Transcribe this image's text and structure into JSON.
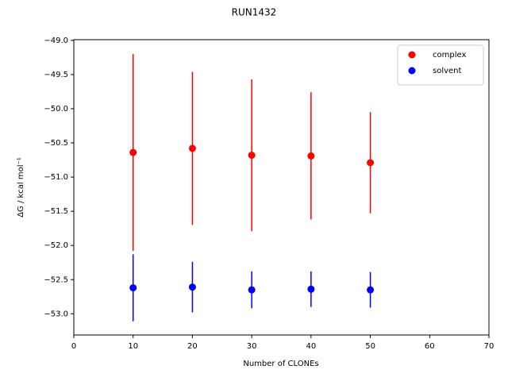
{
  "chart_data": {
    "type": "scatter",
    "title": "RUN1432",
    "x_label": "Number of CLONEs",
    "y_label": "ΔG / kcal mol⁻¹",
    "x": [
      10,
      20,
      30,
      40,
      50
    ],
    "series": [
      {
        "name": "complex",
        "color": "#ff0000",
        "values": [
          -50.64,
          -50.58,
          -50.68,
          -50.69,
          -50.79
        ],
        "errors": [
          1.44,
          1.12,
          1.11,
          0.93,
          0.74
        ]
      },
      {
        "name": "solvent",
        "color": "#0000ff",
        "values": [
          -52.62,
          -52.61,
          -52.65,
          -52.64,
          -52.65
        ],
        "errors": [
          0.49,
          0.37,
          0.27,
          0.26,
          0.26
        ]
      }
    ],
    "xlim": [
      0,
      70
    ],
    "xticks": [
      0,
      10,
      20,
      30,
      40,
      50,
      60,
      70
    ],
    "ylim": [
      -53.31,
      -48.99
    ],
    "yticks": [
      {
        "value": -53.0,
        "label": "−53.0"
      },
      {
        "value": -52.5,
        "label": "−52.5"
      },
      {
        "value": -52.0,
        "label": "−52.0"
      },
      {
        "value": -51.5,
        "label": "−51.5"
      },
      {
        "value": -51.0,
        "label": "−51.0"
      },
      {
        "value": -50.5,
        "label": "−50.5"
      },
      {
        "value": -50.0,
        "label": "−50.0"
      },
      {
        "value": -49.5,
        "label": "−49.5"
      },
      {
        "value": -49.0,
        "label": "−49.0"
      }
    ],
    "grid": false,
    "legend": "upper right"
  }
}
